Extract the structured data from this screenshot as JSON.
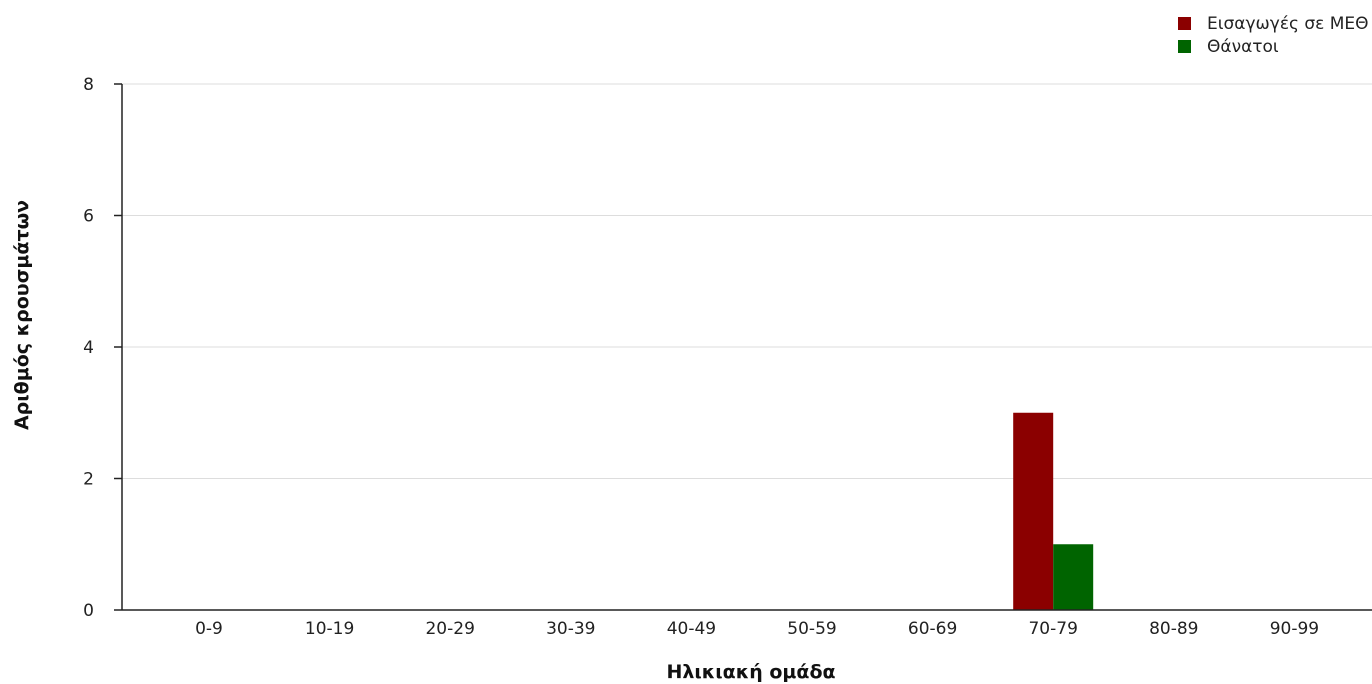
{
  "chart_data": {
    "type": "bar",
    "categories": [
      "0-9",
      "10-19",
      "20-29",
      "30-39",
      "40-49",
      "50-59",
      "60-69",
      "70-79",
      "80-89",
      "90-99"
    ],
    "series": [
      {
        "name": "Εισαγωγές σε ΜΕΘ",
        "color": "#8b0000",
        "values": [
          0,
          0,
          0,
          0,
          0,
          0,
          0,
          3,
          0,
          0
        ]
      },
      {
        "name": "Θάνατοι",
        "color": "#006400",
        "values": [
          0,
          0,
          0,
          0,
          0,
          0,
          0,
          1,
          0,
          0
        ]
      }
    ],
    "xlabel": "Ηλικιακή ομάδα",
    "ylabel": "Αριθμός κρουσμάτων",
    "ylim": [
      0,
      8
    ],
    "yticks": [
      0,
      2,
      4,
      6,
      8
    ],
    "grid": true,
    "legend_position": "top-right"
  }
}
